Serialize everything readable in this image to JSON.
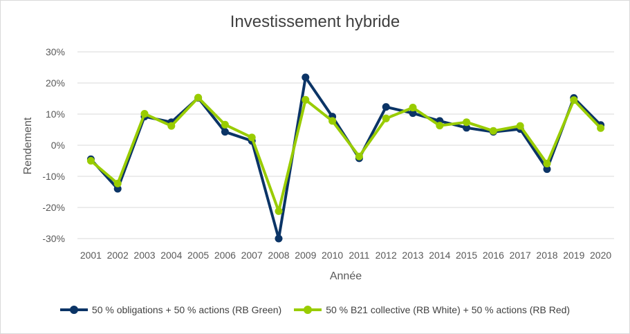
{
  "chart_data": {
    "type": "line",
    "title": "Investissement hybride",
    "xlabel": "Année",
    "ylabel": "Rendement",
    "ylim": [
      -30,
      30
    ],
    "yticks": [
      "30%",
      "20%",
      "10%",
      "0%",
      "-10%",
      "-20%",
      "-30%"
    ],
    "ytick_values": [
      30,
      20,
      10,
      0,
      -10,
      -20,
      -30
    ],
    "categories": [
      "2001",
      "2002",
      "2003",
      "2004",
      "2005",
      "2006",
      "2007",
      "2008",
      "2009",
      "2010",
      "2011",
      "2012",
      "2013",
      "2014",
      "2015",
      "2016",
      "2017",
      "2018",
      "2019",
      "2020"
    ],
    "series": [
      {
        "name": "50 % obligations + 50 % actions (RB Green)",
        "color": "#0b3466",
        "values": [
          -4.5,
          -14,
          9.2,
          7.4,
          15.2,
          4.3,
          1.4,
          -30,
          21.8,
          9.2,
          -4.2,
          12.3,
          10.3,
          7.8,
          5.6,
          4.3,
          5.2,
          -7.7,
          15.2,
          6.5
        ]
      },
      {
        "name": "50 % B21 collective (RB White) + 50 % actions (RB Red)",
        "color": "#99cc00",
        "values": [
          -5,
          -12.3,
          10.1,
          6.2,
          15.3,
          6.6,
          2.5,
          -21.2,
          14.6,
          7.8,
          -3.6,
          8.6,
          12.1,
          6.3,
          7.4,
          4.6,
          6.2,
          -5.9,
          14.5,
          5.5
        ]
      }
    ],
    "grid": true,
    "legend": "bottom"
  }
}
